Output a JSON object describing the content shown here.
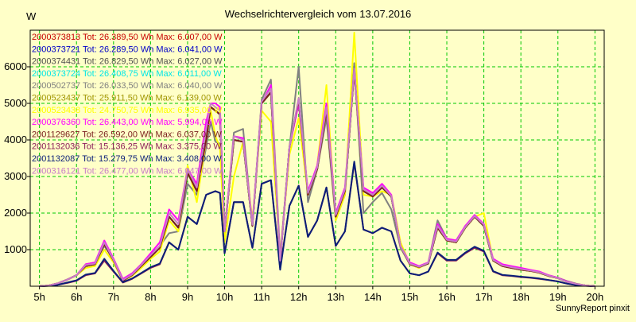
{
  "chart_data": {
    "type": "line",
    "title": "Wechselrichtervergleich vom 13.07.2016",
    "ylabel": "W",
    "footer": "SunnyReport pinxit",
    "x_labels": [
      "5h",
      "6h",
      "7h",
      "8h",
      "9h",
      "10h",
      "11h",
      "12h",
      "13h",
      "14h",
      "15h",
      "16h",
      "17h",
      "18h",
      "19h",
      "20h"
    ],
    "xlim": [
      4.75,
      20.25
    ],
    "ylim": [
      0,
      7000
    ],
    "yticks": [
      1000,
      2000,
      3000,
      4000,
      5000,
      6000
    ],
    "grid": true,
    "grid_color": "#00c800",
    "background": "#ffffc8",
    "legend_position": "top-left",
    "x": [
      5.0,
      5.25,
      5.5,
      5.75,
      6.0,
      6.25,
      6.5,
      6.75,
      7.0,
      7.25,
      7.5,
      7.75,
      8.0,
      8.25,
      8.5,
      8.75,
      9.0,
      9.25,
      9.5,
      9.625,
      9.75,
      9.875,
      10.0,
      10.25,
      10.5,
      10.75,
      11.0,
      11.25,
      11.5,
      11.75,
      12.0,
      12.25,
      12.5,
      12.75,
      13.0,
      13.25,
      13.5,
      13.75,
      14.0,
      14.25,
      14.5,
      14.75,
      15.0,
      15.25,
      15.5,
      15.75,
      16.0,
      16.25,
      16.5,
      16.75,
      17.0,
      17.25,
      17.5,
      17.75,
      18.0,
      18.25,
      18.5,
      18.75,
      19.0,
      19.25,
      19.5,
      19.75,
      20.0
    ],
    "series": [
      {
        "name": "2000373813",
        "label": "2000373813 Tot: 26.389,50 Wh Max: 6.007,00 W",
        "color": "#c80000",
        "values": [
          0,
          20,
          80,
          180,
          300,
          550,
          600,
          1150,
          700,
          150,
          300,
          550,
          800,
          1050,
          1900,
          1600,
          3100,
          2600,
          4000,
          4900,
          4800,
          4700,
          1500,
          4000,
          3950,
          1650,
          5000,
          5300,
          700,
          3800,
          5100,
          2500,
          3200,
          4800,
          1900,
          2600,
          5900,
          2600,
          2450,
          2700,
          2450,
          1100,
          600,
          520,
          620,
          1600,
          1250,
          1200,
          1600,
          1900,
          1650,
          700,
          550,
          500,
          450,
          420,
          370,
          280,
          220,
          120,
          60,
          20,
          0
        ]
      },
      {
        "name": "2000373721",
        "label": "2000373721 Tot: 26.289,50 Wh Max: 6.041,00 W",
        "color": "#0000c8",
        "values": [
          0,
          20,
          80,
          180,
          300,
          550,
          600,
          1150,
          700,
          150,
          300,
          550,
          800,
          1050,
          1900,
          1600,
          3100,
          2600,
          4000,
          4900,
          4800,
          4700,
          1500,
          4000,
          3950,
          1650,
          5000,
          5300,
          700,
          3800,
          5100,
          2500,
          3200,
          4800,
          1900,
          2600,
          5900,
          2600,
          2450,
          2700,
          2450,
          1100,
          600,
          520,
          620,
          1600,
          1250,
          1200,
          1600,
          1900,
          1650,
          700,
          550,
          500,
          450,
          420,
          370,
          280,
          220,
          120,
          60,
          20,
          0
        ]
      },
      {
        "name": "2000374431",
        "label": "2000374431 Tot: 26.829,50 Wh Max: 6.027,00 W",
        "color": "#505050",
        "values": [
          0,
          20,
          80,
          180,
          300,
          550,
          600,
          1150,
          700,
          150,
          300,
          550,
          800,
          1050,
          1900,
          1600,
          3100,
          2600,
          4000,
          4900,
          4800,
          4700,
          1500,
          4000,
          3950,
          1650,
          5000,
          5300,
          700,
          3800,
          5100,
          2500,
          3200,
          4800,
          1900,
          2600,
          5900,
          2600,
          2450,
          2700,
          2450,
          1100,
          600,
          520,
          620,
          1600,
          1250,
          1200,
          1600,
          1900,
          1650,
          700,
          550,
          500,
          450,
          420,
          370,
          280,
          220,
          120,
          60,
          20,
          0
        ]
      },
      {
        "name": "2000373724",
        "label": "2000373724 Tot: 26.408,75 Wh Max: 6.011,00 W",
        "color": "#00e6e6",
        "values": [
          0,
          20,
          80,
          180,
          300,
          550,
          600,
          1150,
          700,
          150,
          300,
          550,
          800,
          1050,
          1900,
          1600,
          3100,
          2600,
          4000,
          4900,
          4800,
          4700,
          1500,
          4000,
          3950,
          1650,
          5000,
          5300,
          700,
          3800,
          5100,
          2500,
          3200,
          4800,
          1900,
          2600,
          5900,
          2600,
          2450,
          2700,
          2450,
          1100,
          600,
          520,
          620,
          1600,
          1250,
          1200,
          1600,
          1900,
          1650,
          700,
          550,
          500,
          450,
          420,
          370,
          280,
          220,
          120,
          60,
          20,
          0
        ]
      },
      {
        "name": "2000502737",
        "label": "2000502737 Tot: 26.033,50 Wh Max: 6.040,00 W",
        "color": "#808080",
        "values": [
          0,
          20,
          80,
          180,
          300,
          600,
          650,
          1100,
          750,
          200,
          350,
          600,
          850,
          1100,
          1450,
          1500,
          2800,
          2500,
          3800,
          4500,
          3950,
          3900,
          1400,
          4200,
          4300,
          1650,
          5100,
          5650,
          800,
          3800,
          6000,
          2300,
          3200,
          4600,
          1800,
          2500,
          6100,
          2000,
          2300,
          2550,
          2100,
          1050,
          600,
          500,
          650,
          1800,
          1300,
          1250,
          1650,
          1900,
          1700,
          700,
          550,
          520,
          470,
          430,
          380,
          300,
          230,
          140,
          70,
          20,
          0
        ]
      },
      {
        "name": "2000523437",
        "label": "2000523437 Tot: 25.911,50 Wh Max: 6.139,00 W",
        "color": "#a09600",
        "values": [
          0,
          20,
          80,
          180,
          300,
          550,
          600,
          1150,
          700,
          150,
          300,
          550,
          800,
          1050,
          1900,
          1600,
          3100,
          2600,
          4000,
          4900,
          4800,
          4700,
          1500,
          4000,
          3950,
          1650,
          5000,
          5300,
          700,
          3800,
          5100,
          2500,
          3200,
          4800,
          1900,
          2600,
          5900,
          2600,
          2450,
          2700,
          2450,
          1100,
          600,
          520,
          620,
          1600,
          1250,
          1200,
          1600,
          1900,
          1650,
          700,
          550,
          500,
          450,
          420,
          370,
          280,
          220,
          120,
          60,
          20,
          0
        ]
      },
      {
        "name": "2000523438",
        "label": "2000523438 Tot: 24.750,75 Wh Max: 6.935,00 W",
        "color": "#ffff00",
        "values": [
          0,
          20,
          80,
          180,
          300,
          500,
          550,
          1000,
          650,
          150,
          280,
          500,
          750,
          950,
          1800,
          1500,
          3300,
          2300,
          4000,
          4800,
          4100,
          3800,
          1200,
          3000,
          3950,
          1800,
          4800,
          4500,
          800,
          3600,
          4600,
          2500,
          3300,
          5500,
          1800,
          2500,
          6935,
          2500,
          2450,
          2600,
          2500,
          1200,
          600,
          500,
          650,
          1600,
          1250,
          1200,
          1600,
          1900,
          2000,
          700,
          550,
          500,
          450,
          420,
          370,
          280,
          220,
          120,
          60,
          20,
          0
        ]
      },
      {
        "name": "2000376360",
        "label": "2000376360 Tot: 26.443,00 Wh Max: 5.994,00 W",
        "color": "#ff00ff",
        "values": [
          0,
          20,
          80,
          180,
          300,
          600,
          650,
          1250,
          750,
          200,
          350,
          600,
          900,
          1200,
          2100,
          1800,
          3200,
          2800,
          4500,
          5000,
          5000,
          4900,
          1500,
          4100,
          4050,
          1700,
          5000,
          5500,
          700,
          3800,
          5000,
          2600,
          3300,
          5000,
          2000,
          2700,
          5900,
          2700,
          2550,
          2800,
          2500,
          1100,
          650,
          550,
          650,
          1700,
          1300,
          1250,
          1650,
          1950,
          1700,
          750,
          600,
          550,
          500,
          450,
          400,
          300,
          230,
          130,
          60,
          20,
          0
        ]
      },
      {
        "name": "2001129627",
        "label": "2001129627 Tot: 26.592,00 Wh Max: 6.037,00 W",
        "color": "#7a1e1e",
        "values": [
          0,
          20,
          80,
          180,
          300,
          550,
          600,
          1150,
          700,
          150,
          300,
          550,
          800,
          1050,
          1900,
          1600,
          3100,
          2600,
          4000,
          4900,
          4800,
          4700,
          1500,
          4000,
          3950,
          1650,
          5000,
          5300,
          700,
          3800,
          5100,
          2500,
          3200,
          4800,
          1900,
          2600,
          5900,
          2600,
          2450,
          2700,
          2450,
          1100,
          600,
          520,
          620,
          1600,
          1250,
          1200,
          1600,
          1900,
          1650,
          700,
          550,
          500,
          450,
          420,
          370,
          280,
          220,
          120,
          60,
          20,
          0
        ]
      },
      {
        "name": "2001132036",
        "label": "2001132036 Tot: 15.136,25 Wh Max: 3.375,00 W",
        "color": "#8c1e5a",
        "values": [
          0,
          10,
          40,
          90,
          150,
          300,
          350,
          700,
          400,
          100,
          200,
          350,
          500,
          600,
          1200,
          1000,
          1900,
          1700,
          2500,
          2550,
          2600,
          2550,
          900,
          2300,
          2300,
          1050,
          2800,
          2900,
          500,
          2200,
          2750,
          1350,
          1800,
          2700,
          1100,
          1500,
          3375,
          1550,
          1450,
          1600,
          1500,
          700,
          350,
          300,
          400,
          900,
          700,
          700,
          900,
          1050,
          950,
          400,
          300,
          280,
          250,
          230,
          200,
          170,
          130,
          70,
          30,
          10,
          0
        ]
      },
      {
        "name": "2001132087",
        "label": "2001132087 Tot: 15.279,75 Wh Max: 3.408,00 W",
        "color": "#0a1e78",
        "values": [
          0,
          10,
          40,
          100,
          160,
          320,
          360,
          750,
          420,
          110,
          210,
          360,
          520,
          620,
          1200,
          1000,
          1900,
          1700,
          2500,
          2550,
          2600,
          2550,
          900,
          2300,
          2300,
          1050,
          2800,
          2900,
          450,
          2200,
          2750,
          1350,
          1800,
          2700,
          1100,
          1500,
          3408,
          1550,
          1450,
          1600,
          1500,
          700,
          350,
          300,
          400,
          920,
          720,
          720,
          920,
          1080,
          970,
          410,
          310,
          290,
          260,
          240,
          210,
          170,
          130,
          70,
          30,
          10,
          0
        ]
      },
      {
        "name": "2000316121",
        "label": "2000316121 Tot: 26.477,00 Wh Max: 6.047,00 W",
        "color": "#c87dc8",
        "values": [
          0,
          20,
          80,
          180,
          300,
          580,
          620,
          1200,
          720,
          170,
          320,
          580,
          850,
          1100,
          2000,
          1700,
          3200,
          2700,
          4300,
          5000,
          4900,
          4800,
          1500,
          4100,
          4000,
          1680,
          5050,
          5400,
          700,
          3800,
          5150,
          2550,
          3250,
          4900,
          1950,
          2650,
          5950,
          2650,
          2500,
          2750,
          2470,
          1100,
          620,
          530,
          640,
          1650,
          1270,
          1220,
          1620,
          1920,
          1680,
          720,
          570,
          520,
          470,
          430,
          380,
          290,
          220,
          120,
          60,
          20,
          0
        ]
      }
    ]
  }
}
